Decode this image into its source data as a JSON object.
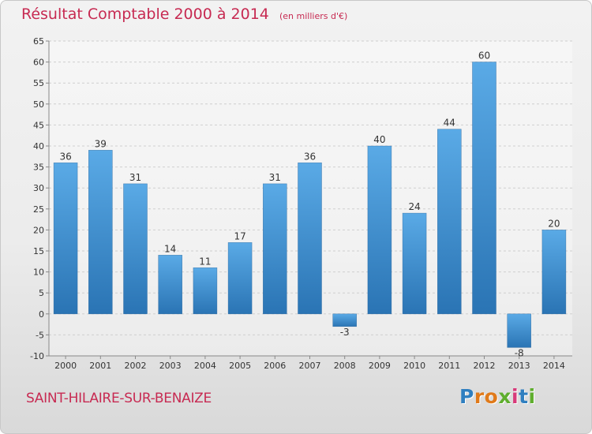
{
  "header": {
    "title": "Résultat Comptable 2000 à 2014",
    "subtitle": "(en milliers d'€)"
  },
  "footer": {
    "commune": "SAINT-HILAIRE-SUR-BENAIZE",
    "logo_letters": [
      "P",
      "r",
      "o",
      "x",
      "i",
      "t",
      "i"
    ]
  },
  "colors": {
    "title": "#c72a52",
    "bar_top": "#5aaae6",
    "bar_bottom": "#2a74b4",
    "logo_letters": [
      "#2f7fc0",
      "#e07a1a",
      "#e07a1a",
      "#5fae2e",
      "#d83a7a",
      "#2f7fc0",
      "#5fae2e"
    ]
  },
  "chart_data": {
    "type": "bar",
    "categories": [
      "2000",
      "2001",
      "2002",
      "2003",
      "2004",
      "2005",
      "2006",
      "2007",
      "2008",
      "2009",
      "2010",
      "2011",
      "2012",
      "2013",
      "2014"
    ],
    "values": [
      36,
      39,
      31,
      14,
      11,
      17,
      31,
      36,
      -3,
      40,
      24,
      44,
      60,
      -8,
      20
    ],
    "data_labels": [
      "36",
      "39",
      "31",
      "14",
      "11",
      "17",
      "31",
      "36",
      "-3",
      "40",
      "24",
      "44",
      "60",
      "-8",
      "20"
    ],
    "ylim": [
      -10,
      65
    ],
    "yticks": [
      -10,
      -5,
      0,
      5,
      10,
      15,
      20,
      25,
      30,
      35,
      40,
      45,
      50,
      55,
      60,
      65
    ],
    "ytick_labels": [
      "-10",
      "-5",
      "0",
      "5",
      "10",
      "15",
      "20",
      "25",
      "30",
      "35",
      "40",
      "45",
      "50",
      "55",
      "60",
      "65"
    ],
    "grid": "horizontal dashed",
    "legend": "none"
  }
}
